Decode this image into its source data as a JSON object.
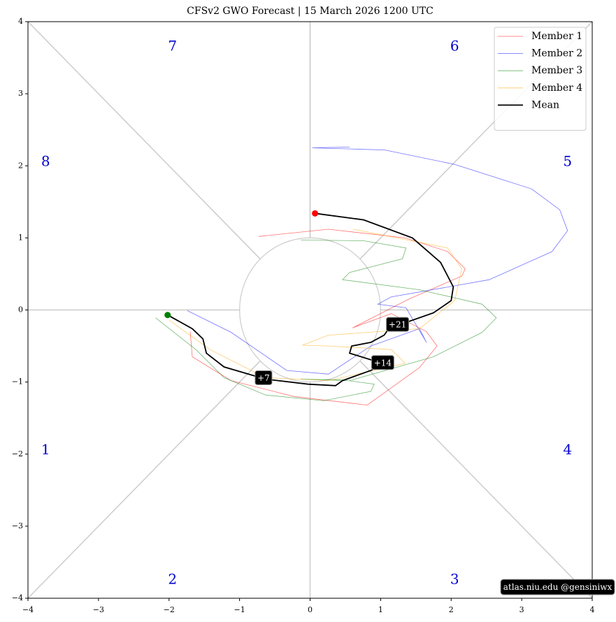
{
  "chart_data": {
    "type": "line",
    "title": "CFSv2 GWO Forecast   |   15  March  2026 1200 UTC",
    "xlim": [
      -4,
      4
    ],
    "ylim": [
      -4,
      4
    ],
    "xticks": [
      {
        "value": -4,
        "label": "−4"
      },
      {
        "value": -3,
        "label": "−3"
      },
      {
        "value": -2,
        "label": "−2"
      },
      {
        "value": -1,
        "label": "−1"
      },
      0,
      1,
      2,
      3,
      4
    ],
    "yticks": [
      {
        "value": -4,
        "label": "−4"
      },
      {
        "value": -3,
        "label": "−3"
      },
      {
        "value": -2,
        "label": "−2"
      },
      {
        "value": -1,
        "label": "−1"
      },
      0,
      1,
      2,
      3,
      4
    ],
    "phase_labels": [
      "1",
      "2",
      "3",
      "4",
      "5",
      "6",
      "7",
      "8"
    ],
    "legend": "upper right",
    "series": [
      {
        "name": "Member 1",
        "color": "#ff0000",
        "x": [
          -1.7,
          -1.67,
          -1.12,
          -0.23,
          0.81,
          1.55,
          1.8,
          1.65,
          1.15,
          0.6,
          1.4,
          2.15,
          2.2,
          1.95,
          1.35,
          0.26,
          -0.73
        ],
        "values": [
          -0.3,
          -0.65,
          -0.98,
          -1.2,
          -1.32,
          -0.8,
          -0.5,
          -0.3,
          -0.05,
          -0.25,
          0.15,
          0.47,
          0.57,
          0.81,
          1.0,
          1.12,
          1.02
        ]
      },
      {
        "name": "Member 2",
        "color": "#0000ff",
        "x": [
          -1.74,
          -1.12,
          -0.33,
          0.26,
          0.86,
          1.55,
          1.65,
          1.36,
          0.96,
          1.15,
          2.54,
          3.43,
          3.65,
          3.54,
          3.14,
          2.05,
          1.06,
          0.03,
          0.56
        ],
        "values": [
          -0.01,
          -0.31,
          -0.84,
          -0.89,
          -0.5,
          -0.26,
          -0.45,
          0.03,
          0.08,
          0.18,
          0.42,
          0.81,
          1.1,
          1.39,
          1.68,
          2.02,
          2.22,
          2.25,
          2.26
        ]
      },
      {
        "name": "Member 3",
        "color": "#008000",
        "x": [
          -2.19,
          -1.62,
          -1.22,
          -0.63,
          0.19,
          0.86,
          0.91,
          0.46,
          -0.13,
          0.56,
          1.75,
          2.44,
          2.64,
          2.44,
          1.55,
          0.46,
          0.56,
          1.31,
          1.36,
          0.76,
          -0.13
        ],
        "values": [
          -0.11,
          -0.55,
          -0.94,
          -1.18,
          -1.26,
          -1.13,
          -1.03,
          -0.97,
          -0.96,
          -0.98,
          -0.65,
          -0.31,
          -0.11,
          0.08,
          0.28,
          0.42,
          0.52,
          0.71,
          0.86,
          0.96,
          0.97
        ]
      },
      {
        "name": "Member 4",
        "color": "#ffa500",
        "x": [
          -2.0,
          -1.42,
          -0.63,
          0.26,
          1.35,
          1.15,
          0.26,
          -0.11,
          0.26,
          1.55,
          2.05,
          2.15,
          1.95,
          0.61
        ],
        "values": [
          -0.14,
          -0.55,
          -0.94,
          -0.98,
          -0.74,
          -0.55,
          -0.5,
          -0.49,
          -0.35,
          -0.26,
          0.13,
          0.57,
          0.86,
          1.12
        ]
      },
      {
        "name": "Mean",
        "color": "#000000",
        "x": [
          -2.02,
          -1.67,
          -1.52,
          -1.47,
          -1.22,
          -0.63,
          -0.03,
          0.36,
          0.46,
          0.86,
          1.04,
          0.86,
          0.56,
          0.59,
          0.86,
          1.05,
          1.15,
          1.4,
          1.75,
          2.0,
          2.03,
          1.85,
          1.45,
          0.76,
          0.07
        ],
        "values": [
          -0.07,
          -0.26,
          -0.4,
          -0.6,
          -0.79,
          -0.96,
          -1.03,
          -1.05,
          -0.98,
          -0.84,
          -0.74,
          -0.69,
          -0.6,
          -0.5,
          -0.45,
          -0.35,
          -0.21,
          -0.16,
          -0.04,
          0.13,
          0.32,
          0.66,
          1.0,
          1.25,
          1.34
        ]
      }
    ],
    "annotations": [
      {
        "text": "+7",
        "x": -0.66,
        "y": -0.94
      },
      {
        "text": "+14",
        "x": 1.03,
        "y": -0.73
      },
      {
        "text": "+21",
        "x": 1.24,
        "y": -0.2
      }
    ],
    "footer": "atlas.niu.edu  @gensiniwx"
  }
}
